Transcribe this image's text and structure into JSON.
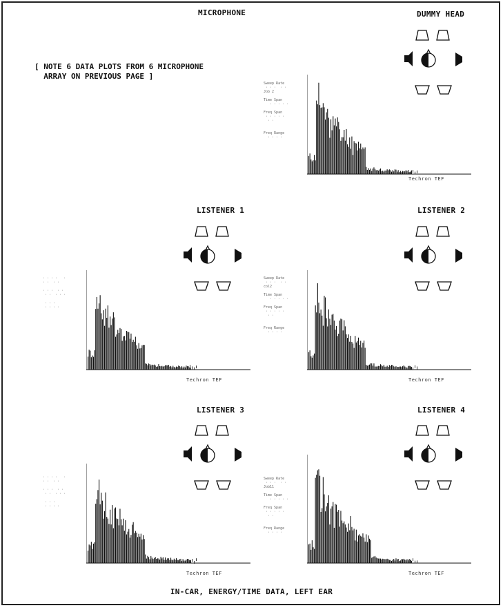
{
  "header": {
    "microphone_label": "MICROPHONE",
    "dummy_head_label": "DUMMY HEAD",
    "note": "[ NOTE 6 DATA PLOTS FROM 6 MICROPHONE\n  ARRAY ON PREVIOUS PAGE ]"
  },
  "footer": {
    "caption": "IN-CAR,  ENERGY/TIME DATA, LEFT EAR"
  },
  "brand": "Techron TEF",
  "icons": {
    "speaker": "speaker-icon",
    "head": "listener-head-icon"
  },
  "chart_data": [
    {
      "type": "bar",
      "title": "DUMMY HEAD",
      "shape": "dummy",
      "side_text": [
        "Sweep Rate",
        "Job 2",
        "Time Span",
        "Freq Span",
        "Freq Range"
      ]
    },
    {
      "type": "bar",
      "title": "LISTENER 1",
      "shape": "l1",
      "side_text": []
    },
    {
      "type": "bar",
      "title": "LISTENER 2",
      "shape": "l2",
      "side_text": [
        "Sweep Rate",
        "col2",
        "Time Span",
        "Freq Span",
        "Freq Range"
      ]
    },
    {
      "type": "bar",
      "title": "LISTENER 3",
      "shape": "l3",
      "side_text": []
    },
    {
      "type": "bar",
      "title": "LISTENER 4",
      "shape": "l4",
      "side_text": [
        "Sweep Rate",
        "Job11",
        "Time Span",
        "Freq Span",
        "Freq Range"
      ]
    }
  ]
}
